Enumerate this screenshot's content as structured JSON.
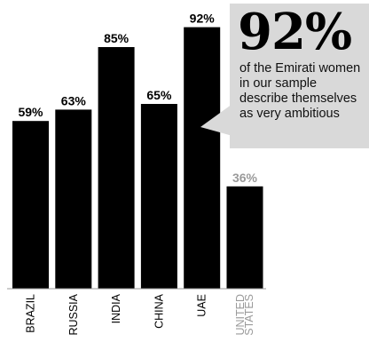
{
  "chart_data": {
    "type": "bar",
    "categories": [
      "BRAZIL",
      "RUSSIA",
      "INDIA",
      "CHINA",
      "UAE",
      "UNITED STATES"
    ],
    "category_lines": [
      [
        "BRAZIL"
      ],
      [
        "RUSSIA"
      ],
      [
        "INDIA"
      ],
      [
        "CHINA"
      ],
      [
        "UAE"
      ],
      [
        "UNITED",
        "STATES"
      ]
    ],
    "values": [
      59,
      63,
      85,
      65,
      92,
      36
    ],
    "value_labels": [
      "59%",
      "63%",
      "85%",
      "65%",
      "92%",
      "36%"
    ],
    "bar_colors": [
      "#000000",
      "#000000",
      "#000000",
      "#000000",
      "#000000",
      "#000000"
    ],
    "label_colors": [
      "#000000",
      "#000000",
      "#000000",
      "#000000",
      "#000000",
      "#9a9a9a"
    ],
    "category_colors": [
      "#000000",
      "#000000",
      "#000000",
      "#000000",
      "#000000",
      "#9a9a9a"
    ],
    "ylim": [
      0,
      100
    ],
    "grid": false,
    "title": "",
    "xlabel": "",
    "ylabel": ""
  },
  "callout": {
    "big_number": "92%",
    "text": "of the Emirati women in our sample describe themselves as very ambitious",
    "background_color": "#d9d9d9"
  }
}
